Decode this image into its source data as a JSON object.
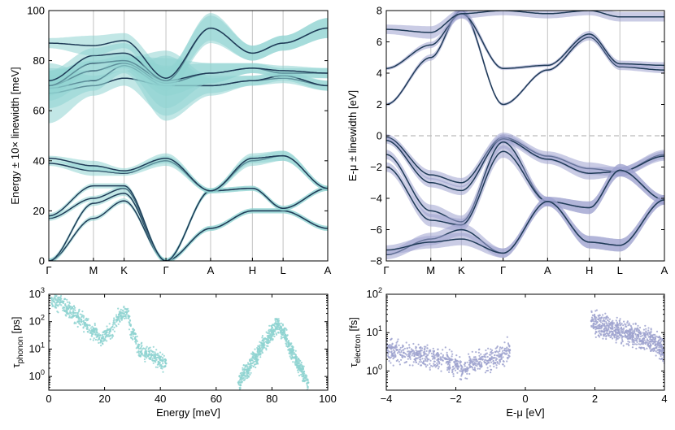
{
  "chart_data": [
    {
      "id": "phonon-bands",
      "type": "line",
      "ylabel": "Energy ± 10× linewidth [meV]",
      "ylim": [
        0,
        100
      ],
      "yticks": [
        "0",
        "20",
        "40",
        "60",
        "80",
        "100"
      ],
      "kpath": [
        "Γ",
        "M",
        "K",
        "Γ",
        "A",
        "H",
        "L",
        "A"
      ],
      "kpos": [
        0,
        0.16,
        0.27,
        0.42,
        0.58,
        0.73,
        0.84,
        1.0
      ],
      "line_color": "#1f3b57",
      "band_color": "#8fd3d1",
      "series": [
        {
          "name": "b1",
          "values": [
            0,
            17,
            24,
            0,
            13,
            20,
            20,
            13
          ]
        },
        {
          "name": "b2",
          "values": [
            0,
            23,
            27,
            0,
            13,
            20,
            20,
            13
          ]
        },
        {
          "name": "b3",
          "values": [
            17,
            25,
            29,
            0,
            28,
            29,
            21,
            29
          ]
        },
        {
          "name": "b4",
          "values": [
            18,
            30,
            30,
            0,
            28,
            29,
            21,
            29
          ]
        },
        {
          "name": "b5",
          "values": [
            39,
            36,
            35,
            40,
            28,
            40,
            42,
            29
          ]
        },
        {
          "name": "b6",
          "values": [
            41,
            38,
            36,
            41,
            28,
            41,
            42,
            29
          ]
        },
        {
          "name": "b7",
          "values": [
            67,
            70,
            73,
            70,
            70,
            72,
            73,
            70
          ]
        },
        {
          "name": "b8",
          "values": [
            69,
            72,
            78,
            70,
            70,
            72,
            74,
            70
          ]
        },
        {
          "name": "b9",
          "values": [
            70,
            76,
            79,
            71,
            75,
            77,
            75,
            75
          ]
        },
        {
          "name": "b10",
          "values": [
            70,
            79,
            80,
            72,
            75,
            77,
            76,
            75
          ]
        },
        {
          "name": "b11",
          "values": [
            72,
            82,
            83,
            72,
            93,
            83,
            87,
            93
          ]
        },
        {
          "name": "b12",
          "values": [
            87,
            86,
            88,
            73,
            93,
            83,
            87,
            93
          ]
        }
      ],
      "linewidth_scale": [
        [
          1,
          1,
          1,
          1,
          1,
          1,
          1,
          1
        ],
        [
          1,
          1,
          1,
          1,
          1,
          1,
          1,
          1
        ],
        [
          1,
          1,
          1,
          1,
          1,
          1,
          1,
          1
        ],
        [
          1,
          1,
          1,
          1,
          1,
          1,
          1,
          1
        ],
        [
          1,
          2,
          1,
          2,
          1,
          2,
          2,
          1
        ],
        [
          1,
          2,
          1,
          2,
          1,
          2,
          2,
          1
        ],
        [
          12,
          4,
          3,
          12,
          3,
          2,
          2,
          2
        ],
        [
          8,
          4,
          3,
          14,
          4,
          2,
          2,
          2
        ],
        [
          6,
          4,
          3,
          10,
          4,
          2,
          2,
          2
        ],
        [
          4,
          3,
          3,
          6,
          4,
          2,
          2,
          2
        ],
        [
          4,
          3,
          4,
          4,
          6,
          3,
          3,
          4
        ],
        [
          2,
          4,
          3,
          4,
          5,
          3,
          3,
          4
        ]
      ]
    },
    {
      "id": "electron-bands",
      "type": "line",
      "ylabel": "E-μ ± linewidth [eV]",
      "ylim": [
        -8,
        8
      ],
      "yticks": [
        "−8",
        "−6",
        "−4",
        "−2",
        "0",
        "2",
        "4",
        "6",
        "8"
      ],
      "kpath": [
        "Γ",
        "M",
        "K",
        "Γ",
        "A",
        "H",
        "L",
        "A"
      ],
      "kpos": [
        0,
        0.16,
        0.27,
        0.42,
        0.58,
        0.73,
        0.84,
        1.0
      ],
      "fermi_level": 0,
      "line_color": "#1f3b57",
      "band_color": "#9fa3cf",
      "series": [
        {
          "name": "c1",
          "values": [
            2.0,
            5.0,
            8.0,
            2.0,
            4.2,
            6.3,
            4.4,
            4.2
          ]
        },
        {
          "name": "c2",
          "values": [
            4.3,
            5.8,
            7.8,
            4.3,
            4.5,
            6.5,
            4.6,
            4.5
          ]
        },
        {
          "name": "c3",
          "values": [
            6.8,
            6.6,
            7.8,
            8.0,
            7.8,
            8.0,
            7.6,
            7.6
          ]
        },
        {
          "name": "v1",
          "values": [
            -0.1,
            -2.5,
            -3.0,
            -0.1,
            -1.3,
            -2.1,
            -2.3,
            -1.2
          ]
        },
        {
          "name": "v2",
          "values": [
            -0.3,
            -3.0,
            -3.5,
            -0.2,
            -1.5,
            -2.4,
            -2.3,
            -1.3
          ]
        },
        {
          "name": "v3",
          "values": [
            -1.2,
            -4.8,
            -5.5,
            -0.4,
            -4.2,
            -4.6,
            -2.2,
            -4.1
          ]
        },
        {
          "name": "v4",
          "values": [
            -2.0,
            -5.4,
            -5.7,
            -1.0,
            -4.2,
            -4.6,
            -2.2,
            -4.1
          ]
        },
        {
          "name": "v5",
          "values": [
            -7.6,
            -6.6,
            -6.0,
            -7.5,
            -4.2,
            -6.8,
            -7.0,
            -4.1
          ]
        },
        {
          "name": "v6",
          "values": [
            -7.3,
            -6.8,
            -6.6,
            -7.5,
            -4.2,
            -6.8,
            -7.0,
            -4.1
          ]
        }
      ],
      "linewidth_scale": [
        [
          0.1,
          0.2,
          0.3,
          0.1,
          0.1,
          0.2,
          0.2,
          0.2
        ],
        [
          0.1,
          0.2,
          0.3,
          0.1,
          0.1,
          0.2,
          0.2,
          0.2
        ],
        [
          0.3,
          0.4,
          0.3,
          0.3,
          0.3,
          0.3,
          0.3,
          0.3
        ],
        [
          0.2,
          0.3,
          0.3,
          0.3,
          0.3,
          0.4,
          0.3,
          0.3
        ],
        [
          0.2,
          0.3,
          0.3,
          0.3,
          0.3,
          0.4,
          0.3,
          0.3
        ],
        [
          0.3,
          0.4,
          0.4,
          0.4,
          0.3,
          0.4,
          0.4,
          0.3
        ],
        [
          0.3,
          0.4,
          0.4,
          0.4,
          0.3,
          0.4,
          0.4,
          0.3
        ],
        [
          0.3,
          0.4,
          0.4,
          0.3,
          0.3,
          0.4,
          0.4,
          0.3
        ],
        [
          0.3,
          0.4,
          0.4,
          0.3,
          0.3,
          0.4,
          0.4,
          0.3
        ]
      ]
    },
    {
      "id": "phonon-lifetime",
      "type": "scatter",
      "xlabel": "Energy [meV]",
      "ylabel_main": "τ",
      "ylabel_sub": "phonon",
      "ylabel_unit": " [ps]",
      "xlim": [
        0,
        100
      ],
      "ylim_log10": [
        -0.5,
        3
      ],
      "xticks": [
        "0",
        "20",
        "40",
        "60",
        "80",
        "100"
      ],
      "ytick_exponents": [
        "0",
        "1",
        "2",
        "3"
      ],
      "ytick_base": "10",
      "color": "#8fd3d1",
      "clusters": [
        {
          "x": 1,
          "y": 700
        },
        {
          "x": 4,
          "y": 500
        },
        {
          "x": 7,
          "y": 300
        },
        {
          "x": 10,
          "y": 150
        },
        {
          "x": 13,
          "y": 90
        },
        {
          "x": 16,
          "y": 45
        },
        {
          "x": 19,
          "y": 25
        },
        {
          "x": 22,
          "y": 45
        },
        {
          "x": 25,
          "y": 150
        },
        {
          "x": 28,
          "y": 220
        },
        {
          "x": 30,
          "y": 40
        },
        {
          "x": 33,
          "y": 8
        },
        {
          "x": 37,
          "y": 6
        },
        {
          "x": 40,
          "y": 4
        },
        {
          "x": 42,
          "y": 3
        },
        {
          "x": 68,
          "y": 0.6
        },
        {
          "x": 71,
          "y": 1.5
        },
        {
          "x": 74,
          "y": 5
        },
        {
          "x": 77,
          "y": 15
        },
        {
          "x": 80,
          "y": 40
        },
        {
          "x": 82,
          "y": 80
        },
        {
          "x": 84,
          "y": 40
        },
        {
          "x": 87,
          "y": 8
        },
        {
          "x": 90,
          "y": 2
        },
        {
          "x": 93,
          "y": 0.6
        }
      ]
    },
    {
      "id": "electron-lifetime",
      "type": "scatter",
      "xlabel": "E-μ [eV]",
      "ylabel_main": "τ",
      "ylabel_sub": "electron",
      "ylabel_unit": " [fs]",
      "xlim": [
        -4,
        4
      ],
      "ylim_log10": [
        -0.5,
        2
      ],
      "xticks": [
        "−4",
        "−2",
        "0",
        "2",
        "4"
      ],
      "ytick_exponents": [
        "0",
        "1",
        "2"
      ],
      "ytick_base": "10",
      "color": "#9fa3cf",
      "clusters": [
        {
          "x": -4.0,
          "y": 3.5
        },
        {
          "x": -3.5,
          "y": 3.0
        },
        {
          "x": -3.0,
          "y": 2.5
        },
        {
          "x": -2.5,
          "y": 2.0
        },
        {
          "x": -2.0,
          "y": 1.5
        },
        {
          "x": -1.8,
          "y": 1.0
        },
        {
          "x": -1.5,
          "y": 1.5
        },
        {
          "x": -1.0,
          "y": 2.0
        },
        {
          "x": -0.7,
          "y": 2.5
        },
        {
          "x": -0.45,
          "y": 3.5
        },
        {
          "x": 1.9,
          "y": 20
        },
        {
          "x": 2.2,
          "y": 15
        },
        {
          "x": 2.6,
          "y": 12
        },
        {
          "x": 3.0,
          "y": 9
        },
        {
          "x": 3.4,
          "y": 7
        },
        {
          "x": 3.8,
          "y": 5
        },
        {
          "x": 4.0,
          "y": 3
        }
      ]
    }
  ]
}
